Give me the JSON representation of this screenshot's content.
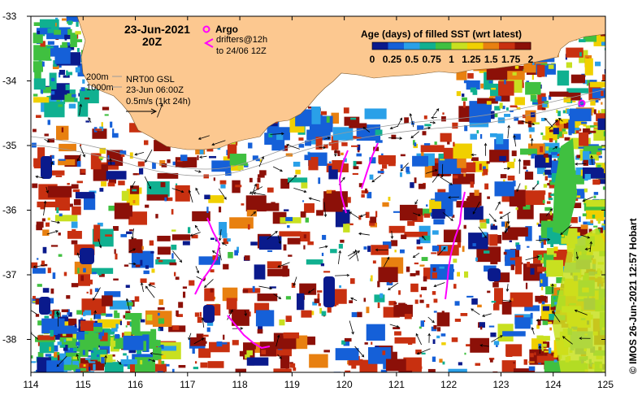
{
  "title": {
    "date": "23-Jun-2021",
    "hour": "20Z"
  },
  "legend": {
    "argo_label": "Argo",
    "drifters_line1": "drifters@12h",
    "drifters_line2": "to 24/06 12Z",
    "scale_title": "Age (days) of filled SST (wrt latest)",
    "scale_ticks": [
      "0",
      "0.25",
      "0.5",
      "0.75",
      "1",
      "1.25",
      "1.5",
      "1.75",
      "2"
    ],
    "scale_colors": [
      "#0a1a8c",
      "#1560d8",
      "#2aa0e8",
      "#10b090",
      "#40c040",
      "#c8e020",
      "#f0d000",
      "#e88010",
      "#c83010",
      "#8c1008"
    ]
  },
  "annotations": {
    "isobath_200": "200m",
    "isobath_1000": "1000m",
    "product": "NRT00 GSL",
    "valid_time": "23-Jun 06:00Z",
    "vector_scale": "0.5m/s (1kt 24h)"
  },
  "credit": "© IMOS 26-Jun-2021 12:57 Hobart",
  "axes": {
    "x_ticks": [
      "114",
      "115",
      "116",
      "117",
      "118",
      "119",
      "120",
      "121",
      "122",
      "123",
      "124",
      "125"
    ],
    "y_ticks": [
      "-33",
      "-34",
      "-35",
      "-36",
      "-37",
      "-38"
    ]
  },
  "colors": {
    "land": "#fcc890",
    "frame": "#000000",
    "argo": "#ff00ff",
    "drifter": "#ff00ff"
  }
}
